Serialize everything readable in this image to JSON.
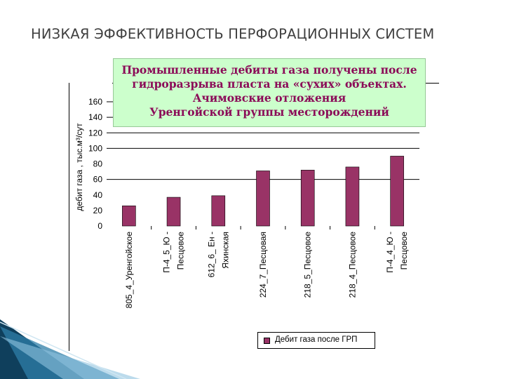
{
  "slide": {
    "title": "НИЗКАЯ ЭФФЕКТИВНОСТЬ ПЕРФОРАЦИОННЫХ СИСТЕМ"
  },
  "callout": {
    "lines": [
      "Промышленные дебиты газа получены после",
      "гидроразрыва пласта на «сухих» объектах.",
      "Ачимовские отложения",
      "Уренгойской группы месторождений"
    ]
  },
  "chart_data": {
    "type": "bar",
    "ylabel": "дебит газа , тыс.м³/сут",
    "ylim": [
      0,
      160
    ],
    "yticks": [
      0,
      20,
      40,
      60,
      80,
      100,
      120,
      140,
      160
    ],
    "gridlines": [
      60,
      100,
      120,
      140,
      160
    ],
    "categories": [
      [
        "805_4_Уренгойское"
      ],
      [
        "П-4_5_Ю -",
        "Песцовое"
      ],
      [
        "612_6_ Ен -",
        "Яхинская"
      ],
      [
        "224_7_Песцовая"
      ],
      [
        "218_5_Песцовое"
      ],
      [
        "218_4_Песцовое"
      ],
      [
        "П-4_4_Ю -",
        "Песцовое"
      ]
    ],
    "series": [
      {
        "name": "Дебит газа после ГРП",
        "values": [
          26,
          37,
          39,
          71,
          72,
          76,
          90
        ]
      }
    ],
    "legend_position": "bottom-right",
    "colors": {
      "bar": "#993366",
      "bar_border": "#000000"
    }
  }
}
